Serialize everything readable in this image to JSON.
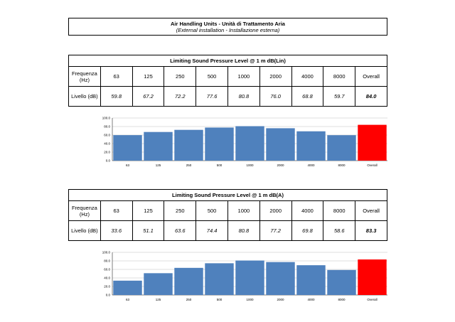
{
  "header": {
    "title": "Air Handling Units - Unità di Trattamento Aria",
    "subtitle": "(External installation - Installazione esterna)"
  },
  "colors": {
    "bar": "#4f81bd",
    "overall_bar": "#ff0000",
    "grid": "#bfbfbf"
  },
  "row_label_freq": "Frequenza (Hz)",
  "row_label_level": "Livello (dB)",
  "sections": [
    {
      "table_title": "Limiting Sound Pressure Level @ 1 m dB(Lin)",
      "freqs": [
        "63",
        "125",
        "250",
        "500",
        "1000",
        "2000",
        "4000",
        "8000",
        "Overall"
      ],
      "levels": [
        "59.8",
        "67.2",
        "72.2",
        "77.6",
        "80.8",
        "76.0",
        "68.8",
        "59.7",
        "84.0"
      ]
    },
    {
      "table_title": "Limiting Sound Pressure Level @ 1 m dB(A)",
      "freqs": [
        "63",
        "125",
        "250",
        "500",
        "1000",
        "2000",
        "4000",
        "8000",
        "Overall"
      ],
      "levels": [
        "33.6",
        "51.1",
        "63.6",
        "74.4",
        "80.8",
        "77.2",
        "69.8",
        "58.6",
        "83.3"
      ]
    }
  ],
  "chart_data": [
    {
      "type": "bar",
      "categories": [
        "63",
        "125",
        "250",
        "500",
        "1000",
        "2000",
        "4000",
        "8000",
        "Overall"
      ],
      "values": [
        59.8,
        67.2,
        72.2,
        77.6,
        80.8,
        76.0,
        68.8,
        59.7,
        84.0
      ],
      "ylim": [
        0,
        100
      ],
      "yticks": [
        "0.0",
        "20.0",
        "40.0",
        "60.0",
        "80.0",
        "100.0"
      ],
      "grid": true,
      "highlight_last": true
    },
    {
      "type": "bar",
      "categories": [
        "63",
        "125",
        "250",
        "500",
        "1000",
        "2000",
        "4000",
        "8000",
        "Overall"
      ],
      "values": [
        33.6,
        51.1,
        63.6,
        74.4,
        80.8,
        77.2,
        69.8,
        58.6,
        83.3
      ],
      "ylim": [
        0,
        100
      ],
      "yticks": [
        "0.0",
        "20.0",
        "40.0",
        "60.0",
        "80.0",
        "100.0"
      ],
      "grid": true,
      "highlight_last": true
    }
  ]
}
